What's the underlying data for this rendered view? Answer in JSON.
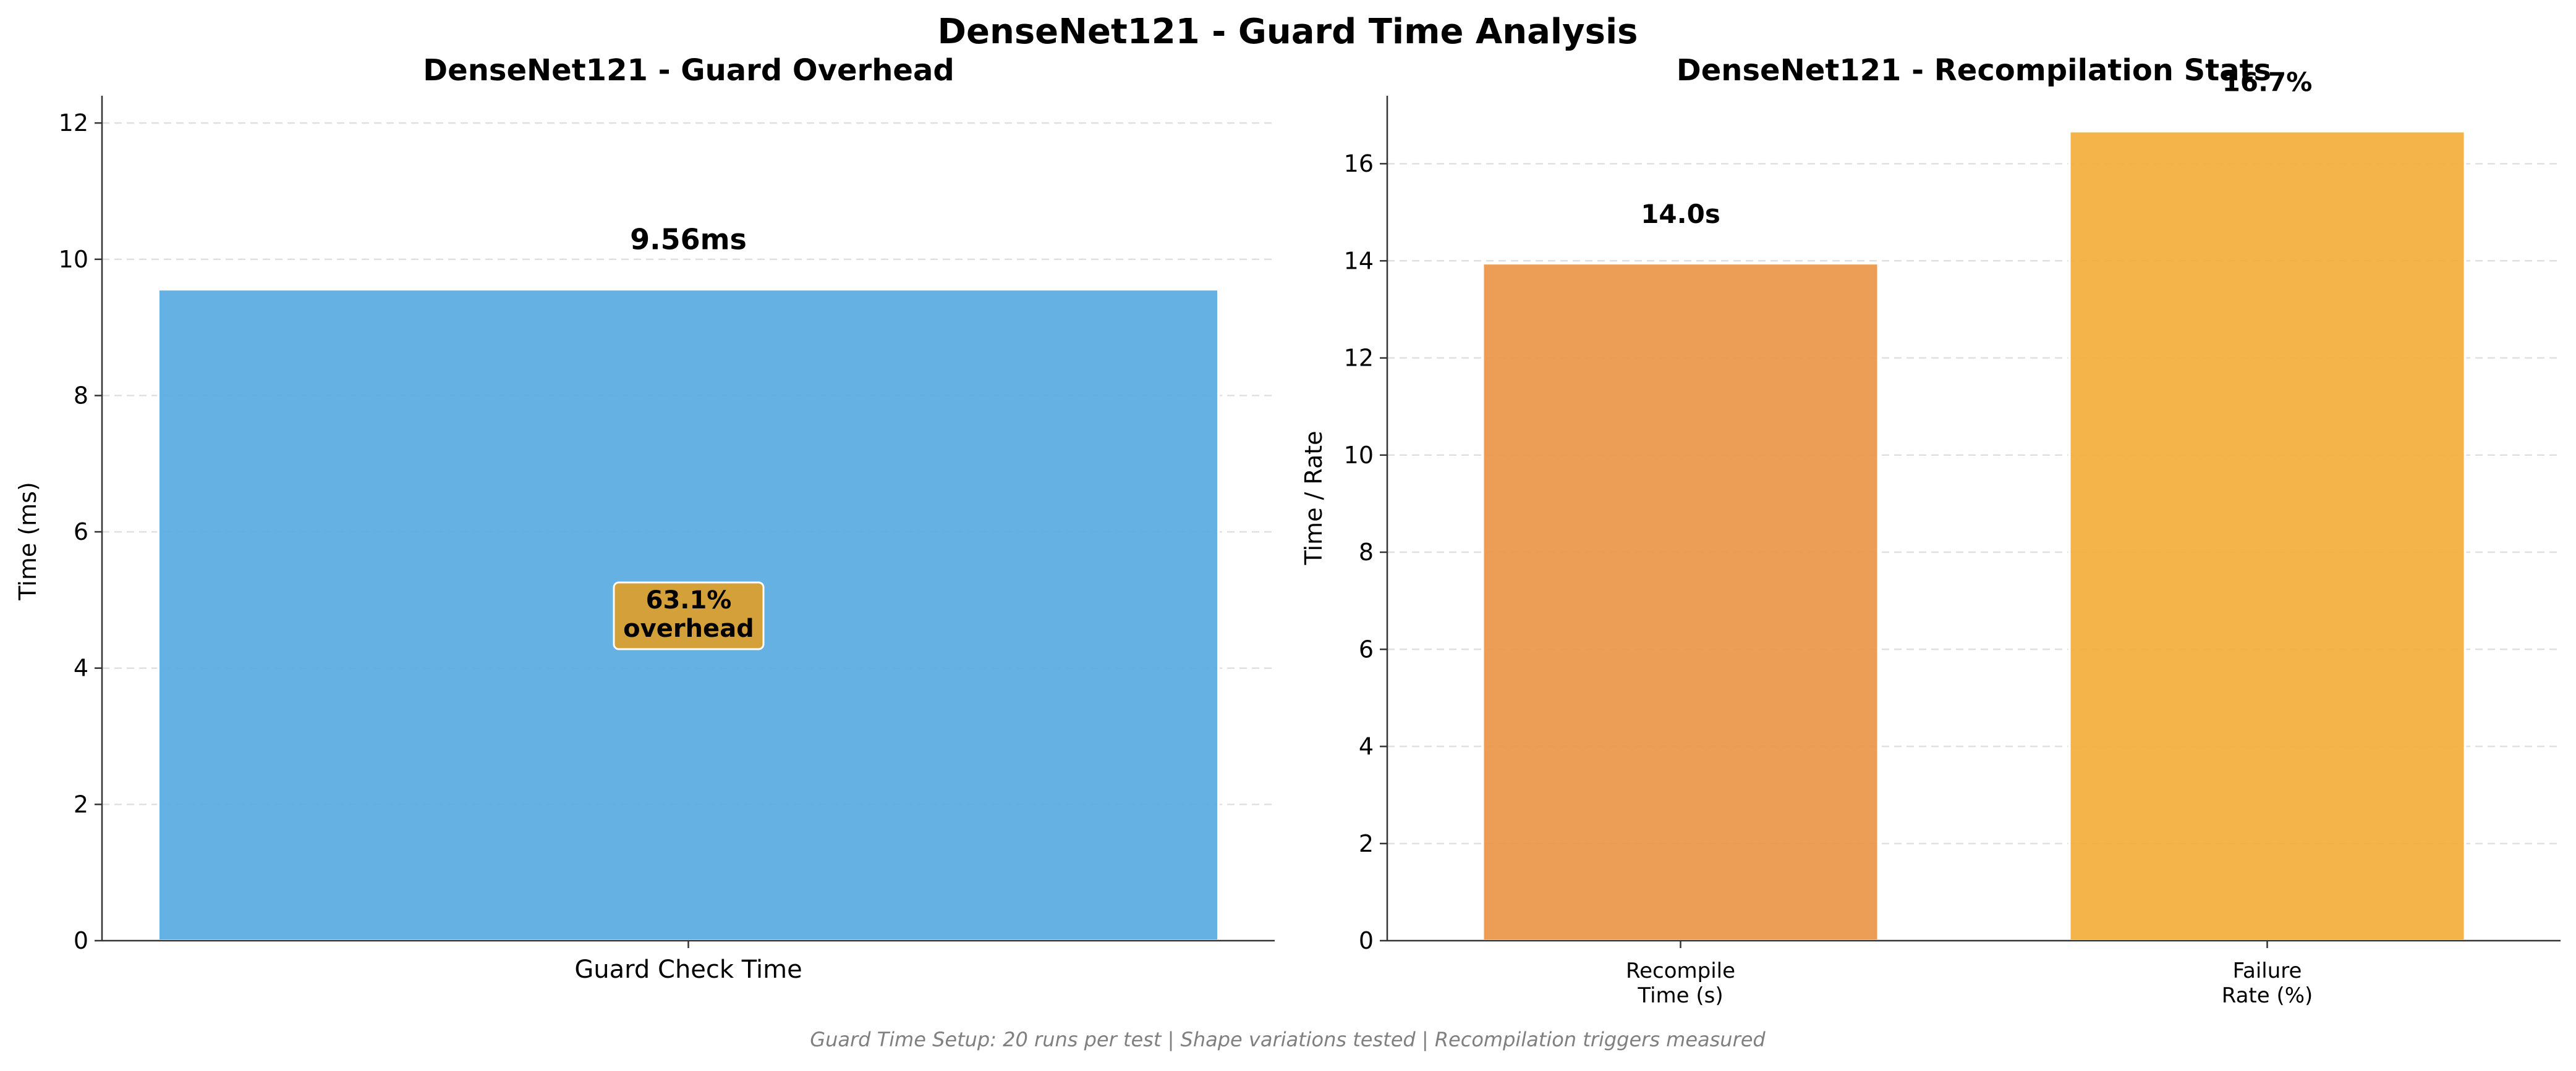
{
  "figure": {
    "suptitle": "DenseNet121 - Guard Time Analysis",
    "footnote": "Guard Time Setup: 20 runs per test | Shape variations tested | Recompilation triggers measured"
  },
  "colors": {
    "guard_bar": "#5DADE2",
    "recompile_bar": "#EB984E",
    "failure_bar": "#F5B041",
    "annotation_box": "#D4A03A",
    "grid": "#E0E0E0",
    "axis": "#333333",
    "footnote": "#808080"
  },
  "chart_data": [
    {
      "type": "bar",
      "title": "DenseNet121 - Guard Overhead",
      "xlabel": "",
      "ylabel": "Time (ms)",
      "categories": [
        "Guard Check Time"
      ],
      "values": [
        9.56
      ],
      "value_labels": [
        "9.56ms"
      ],
      "ylim": [
        0,
        12.4
      ],
      "yticks": [
        0,
        2,
        4,
        6,
        8,
        10,
        12
      ],
      "grid": "horizontal dashed",
      "annotation": {
        "line1": "63.1%",
        "line2": "overhead",
        "y": 4.8
      }
    },
    {
      "type": "bar",
      "title": "DenseNet121 - Recompilation Stats",
      "xlabel": "",
      "ylabel": "Time / Rate",
      "categories": [
        [
          "Recompile",
          "Time (s)"
        ],
        [
          "Failure",
          "Rate (%)"
        ]
      ],
      "values": [
        13.95,
        16.67
      ],
      "value_labels": [
        "14.0s",
        "16.7%"
      ],
      "ylim": [
        0,
        17.4
      ],
      "yticks": [
        0,
        2,
        4,
        6,
        8,
        10,
        12,
        14,
        16
      ],
      "grid": "horizontal dashed"
    }
  ]
}
